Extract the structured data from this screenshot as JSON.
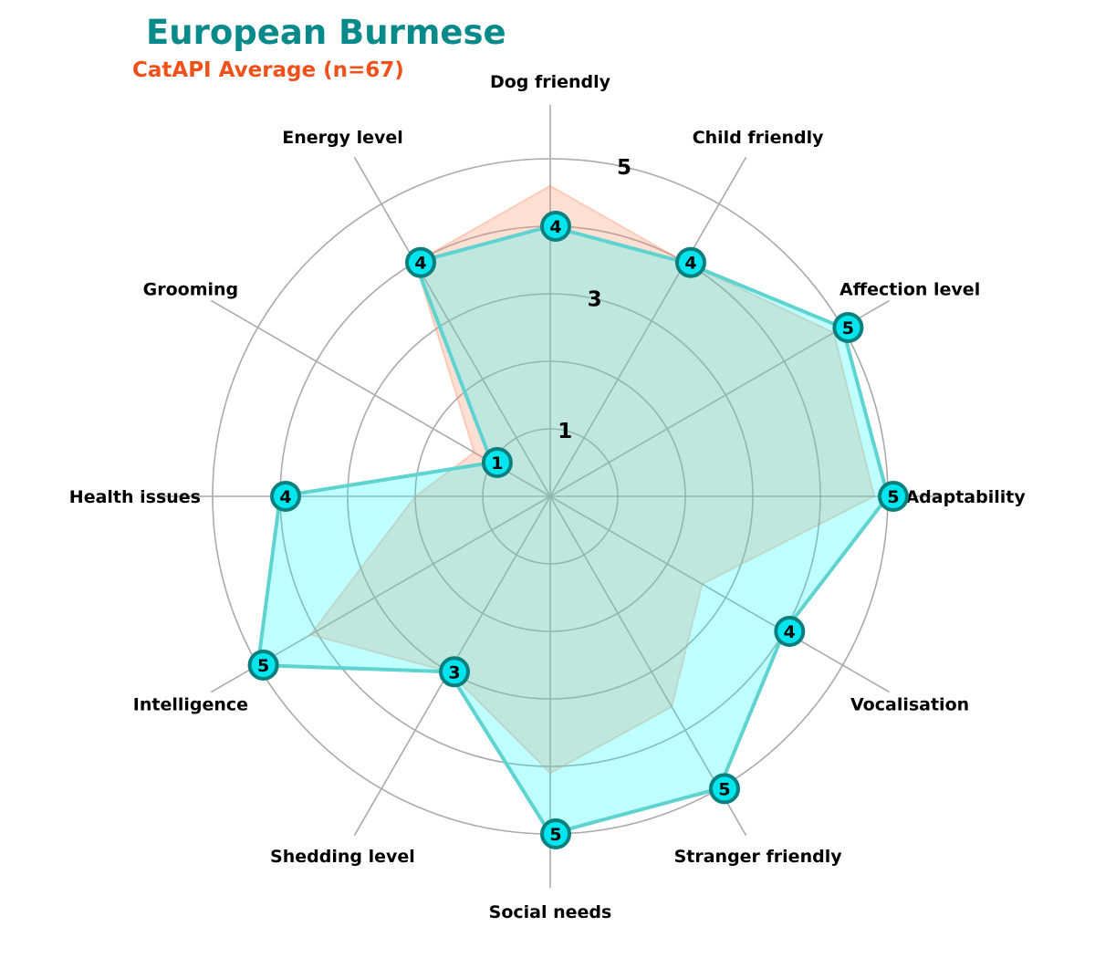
{
  "title": "European Burmese",
  "subtitle": "CatAPI Average (n=67)",
  "colors": {
    "title": "#088a8a",
    "subtitle": "#f0501a",
    "breed_fill": "#00ffff",
    "breed_stroke": "#5fd3cf",
    "avg_fill": "#fa8c64",
    "marker_fill": "#00e5ee",
    "marker_stroke": "#0b7f7d",
    "grid": "#aaaaaa"
  },
  "chart_data": {
    "type": "radar",
    "categories": [
      "Adaptability",
      "Affection level",
      "Child friendly",
      "Dog friendly",
      "Energy level",
      "Grooming",
      "Health issues",
      "Intelligence",
      "Shedding level",
      "Social needs",
      "Stranger friendly",
      "Vocalisation"
    ],
    "series": [
      {
        "name": "European Burmese",
        "values": [
          5,
          5,
          4,
          4,
          4,
          1,
          4,
          5,
          3,
          5,
          5,
          4
        ]
      },
      {
        "name": "CatAPI Average (n=67)",
        "values": [
          4.8,
          4.85,
          4.0,
          4.6,
          4.0,
          1.3,
          2.0,
          4.1,
          3.0,
          4.1,
          3.6,
          2.6
        ]
      }
    ],
    "rlim": [
      0,
      5
    ],
    "tick_values": [
      1,
      2,
      3,
      4,
      5
    ],
    "tick_labels": [
      1,
      3,
      5
    ],
    "grid": true
  }
}
